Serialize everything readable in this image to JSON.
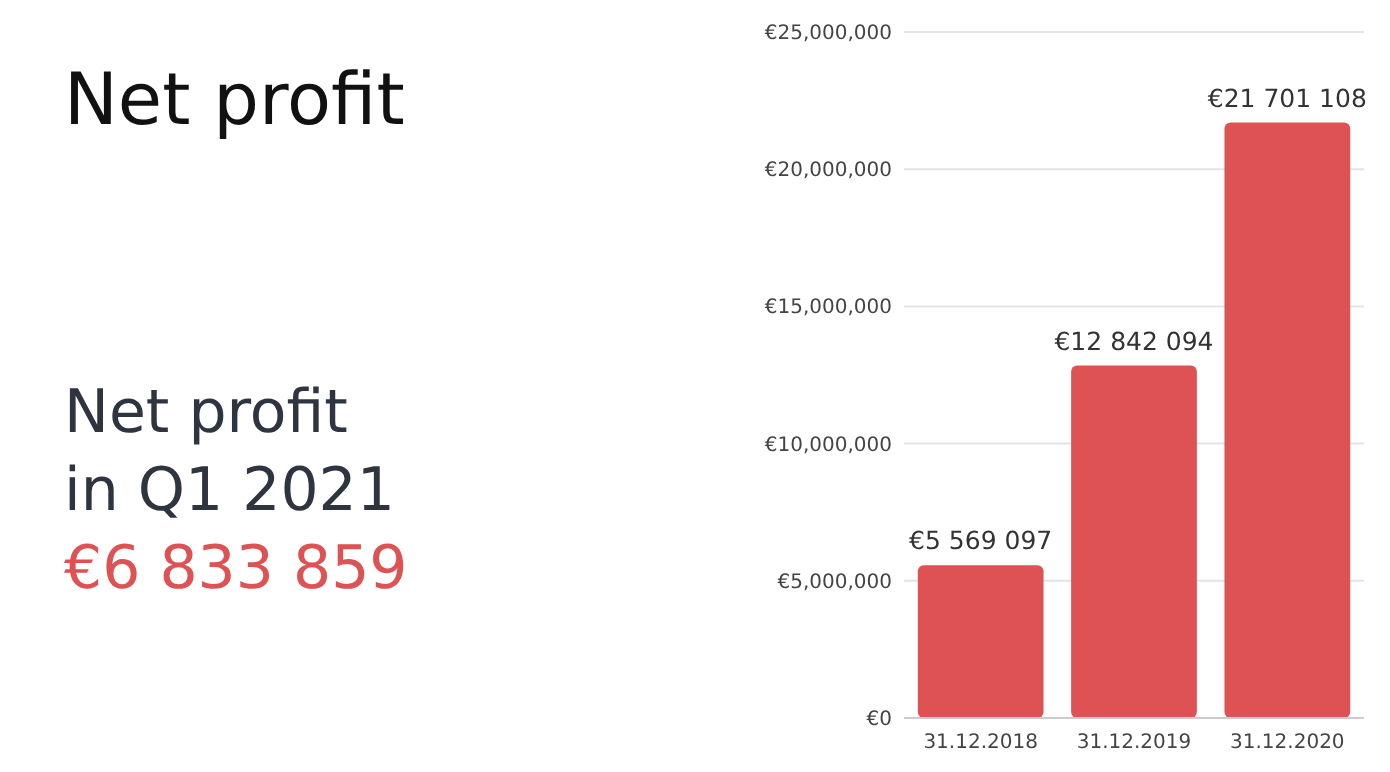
{
  "chart_data": {
    "type": "bar",
    "title": "Net profit",
    "annotations": [
      "Net profit",
      "in Q1 2021",
      "€6 833 859"
    ],
    "categories": [
      "31.12.2018",
      "31.12.2019",
      "31.12.2020"
    ],
    "values": [
      5569097,
      12842094,
      21701108
    ],
    "value_labels": [
      "€5 569 097",
      "€12 842 094",
      "€21 701 108"
    ],
    "color": "#de5254",
    "ylim": [
      0,
      25000000
    ],
    "yticks": [
      {
        "value": 0,
        "label": "€0"
      },
      {
        "value": 5000000,
        "label": "€5,000,000"
      },
      {
        "value": 10000000,
        "label": "€10,000,000"
      },
      {
        "value": 15000000,
        "label": "€15,000,000"
      },
      {
        "value": 20000000,
        "label": "€20,000,000"
      },
      {
        "value": 25000000,
        "label": "€25,000,000"
      }
    ],
    "grid": "y"
  }
}
